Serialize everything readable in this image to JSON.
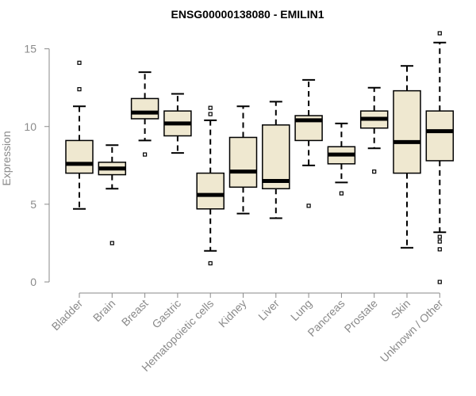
{
  "chart_data": {
    "type": "box",
    "title": "ENSG00000138080 - EMILIN1",
    "xlabel": "",
    "ylabel": "Expression",
    "ylim": [
      0,
      16
    ],
    "yticks": [
      0,
      5,
      10,
      15
    ],
    "grid": false,
    "colors": {
      "box_fill": "#efe8d0",
      "box_stroke": "#000000",
      "median": "#000000",
      "axis": "#8a8a8a"
    },
    "categories": [
      "Bladder",
      "Brain",
      "Breast",
      "Gastric",
      "Hematopoietic cells",
      "Kidney",
      "Liver",
      "Lung",
      "Pancreas",
      "Prostate",
      "Skin",
      "Unknown / Other"
    ],
    "boxes": [
      {
        "min": 4.7,
        "q1": 7.0,
        "median": 7.6,
        "q3": 9.1,
        "max": 11.3,
        "outliers": [
          12.4,
          14.1
        ]
      },
      {
        "min": 6.0,
        "q1": 6.9,
        "median": 7.3,
        "q3": 7.7,
        "max": 8.8,
        "outliers": [
          2.5
        ]
      },
      {
        "min": 9.1,
        "q1": 10.5,
        "median": 10.9,
        "q3": 11.8,
        "max": 13.5,
        "outliers": [
          8.2
        ]
      },
      {
        "min": 8.3,
        "q1": 9.4,
        "median": 10.2,
        "q3": 11.0,
        "max": 12.1,
        "outliers": []
      },
      {
        "min": 2.0,
        "q1": 4.7,
        "median": 5.6,
        "q3": 7.0,
        "max": 10.4,
        "outliers": [
          1.2,
          10.8,
          11.2
        ]
      },
      {
        "min": 4.4,
        "q1": 6.1,
        "median": 7.1,
        "q3": 9.3,
        "max": 11.3,
        "outliers": []
      },
      {
        "min": 4.1,
        "q1": 6.0,
        "median": 6.5,
        "q3": 10.1,
        "max": 11.6,
        "outliers": []
      },
      {
        "min": 7.5,
        "q1": 9.1,
        "median": 10.4,
        "q3": 10.7,
        "max": 13.0,
        "outliers": [
          4.9
        ]
      },
      {
        "min": 6.4,
        "q1": 7.6,
        "median": 8.2,
        "q3": 8.7,
        "max": 10.2,
        "outliers": [
          5.7
        ]
      },
      {
        "min": 8.6,
        "q1": 9.9,
        "median": 10.5,
        "q3": 11.0,
        "max": 12.5,
        "outliers": [
          7.1
        ]
      },
      {
        "min": 2.2,
        "q1": 7.0,
        "median": 9.0,
        "q3": 12.3,
        "max": 13.9,
        "outliers": []
      },
      {
        "min": 3.2,
        "q1": 7.8,
        "median": 9.7,
        "q3": 11.0,
        "max": 15.4,
        "outliers": [
          0.0,
          2.1,
          2.6,
          2.9,
          16.0
        ]
      }
    ]
  }
}
